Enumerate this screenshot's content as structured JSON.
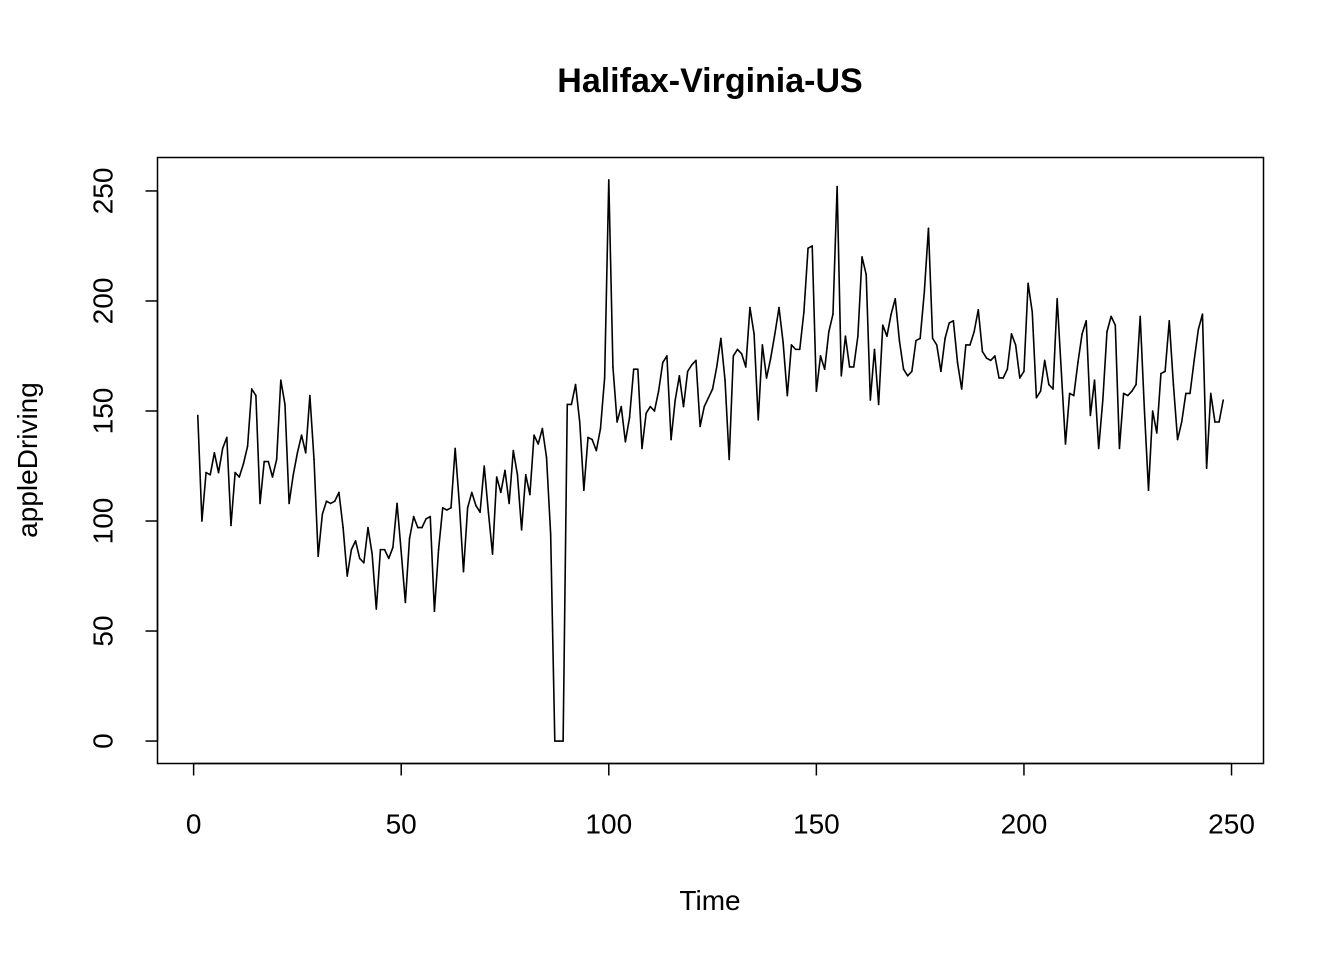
{
  "chart_data": {
    "type": "line",
    "title": "Halifax-Virginia-US",
    "xlabel": "Time",
    "ylabel": "appleDriving",
    "xlim": [
      -8.7,
      257.7
    ],
    "ylim": [
      -10.2,
      265.2
    ],
    "x_ticks": [
      0,
      50,
      100,
      150,
      200,
      250
    ],
    "y_ticks": [
      0,
      50,
      100,
      150,
      200,
      250
    ],
    "grid": false,
    "legend": "none",
    "x_start": 1,
    "series": [
      {
        "color": "#000000",
        "values": [
          148,
          100,
          122,
          121,
          131,
          122,
          133,
          138,
          98,
          122,
          120,
          126,
          134,
          160,
          157,
          108,
          127,
          127,
          120,
          128,
          164,
          153,
          108,
          121,
          131,
          139,
          131,
          157,
          128,
          84,
          103,
          109,
          108,
          109,
          113,
          97,
          75,
          87,
          91,
          83,
          81,
          97,
          85,
          60,
          87,
          87,
          83,
          88,
          108,
          86,
          63,
          92,
          102,
          97,
          97,
          101,
          102,
          59,
          87,
          106,
          105,
          106,
          133,
          108,
          77,
          106,
          113,
          107,
          104,
          125,
          104,
          85,
          120,
          113,
          123,
          108,
          132,
          121,
          96,
          121,
          112,
          139,
          135,
          142,
          129,
          94,
          0,
          0,
          0,
          153,
          153,
          162,
          145,
          114,
          138,
          137,
          132,
          142,
          165,
          255,
          170,
          145,
          152,
          136,
          147,
          169,
          169,
          133,
          149,
          152,
          150,
          159,
          172,
          175,
          137,
          155,
          166,
          152,
          168,
          171,
          173,
          143,
          152,
          156,
          160,
          170,
          183,
          164,
          128,
          175,
          178,
          176,
          170,
          197,
          185,
          146,
          180,
          165,
          174,
          185,
          197,
          181,
          157,
          180,
          178,
          178,
          195,
          224,
          225,
          159,
          175,
          169,
          186,
          194,
          252,
          166,
          184,
          170,
          170,
          184,
          220,
          212,
          155,
          178,
          153,
          189,
          184,
          194,
          201,
          182,
          169,
          166,
          168,
          182,
          183,
          204,
          233,
          183,
          180,
          168,
          183,
          190,
          191,
          172,
          160,
          180,
          180,
          186,
          196,
          177,
          174,
          173,
          175,
          165,
          165,
          169,
          185,
          180,
          165,
          168,
          208,
          195,
          156,
          159,
          173,
          162,
          160,
          201,
          168,
          135,
          158,
          157,
          172,
          185,
          191,
          148,
          164,
          133,
          155,
          186,
          193,
          189,
          133,
          158,
          157,
          159,
          162,
          193,
          151,
          114,
          150,
          140,
          167,
          168,
          191,
          162,
          137,
          145,
          158,
          158,
          173,
          187,
          194,
          124,
          158,
          145,
          145,
          155
        ]
      }
    ]
  }
}
